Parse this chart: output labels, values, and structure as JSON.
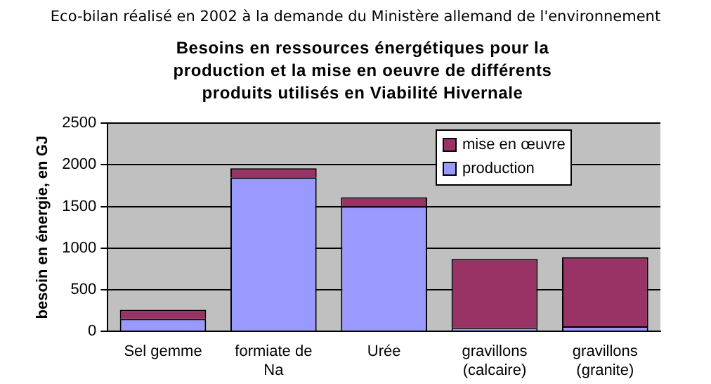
{
  "chart_data": {
    "type": "bar",
    "subtitle": "Eco-bilan réalisé en 2002 à la demande du Ministère allemand de l'environnement",
    "title": "Besoins en ressources énergétiques pour la production et la mise en oeuvre de différents produits utilisés en Viabilité Hivernale",
    "ylabel": "besoin en énergie, en GJ",
    "categories": [
      "Sel gemme",
      "formiate de Na",
      "Urée",
      "gravillons (calcaire)",
      "gravillons (granite)"
    ],
    "stacked": true,
    "series": [
      {
        "name": "production",
        "color": "#9999ff",
        "values": [
          150,
          1850,
          1500,
          40,
          60
        ]
      },
      {
        "name": "mise en œuvre",
        "color": "#993366",
        "values": [
          110,
          110,
          110,
          830,
          830
        ]
      }
    ],
    "ylim": [
      0,
      2500
    ],
    "yticks": [
      0,
      500,
      1000,
      1500,
      2000,
      2500
    ],
    "grid": "y",
    "legend": "top right"
  }
}
